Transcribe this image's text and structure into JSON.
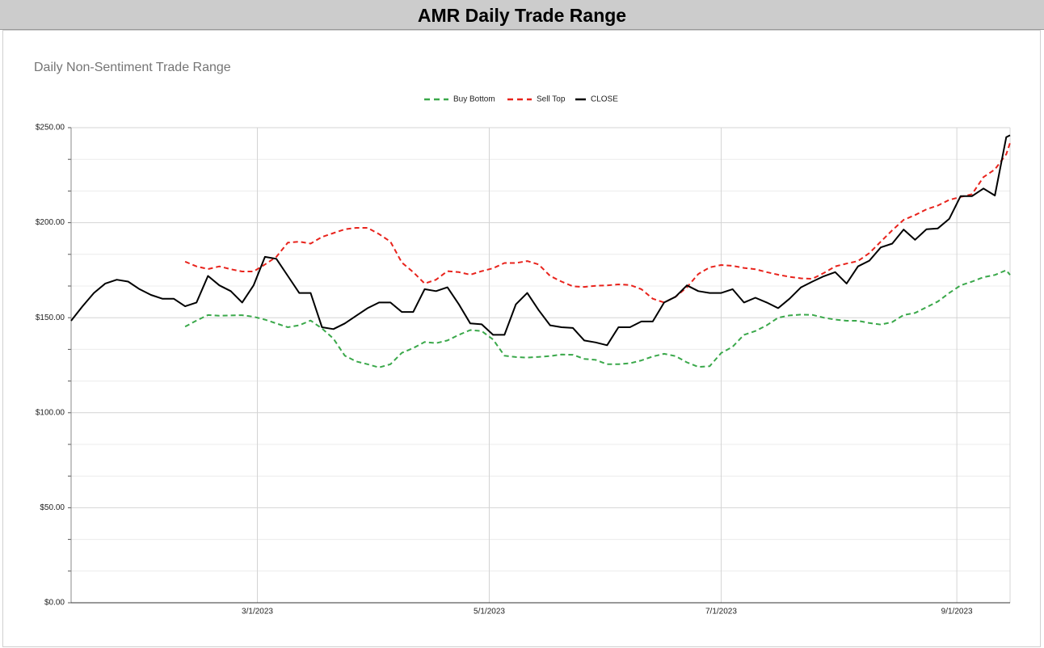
{
  "page_title": "AMR Daily Trade Range",
  "chart_data": {
    "type": "line",
    "title": "Daily Non-Sentiment Trade Range",
    "legend": "top",
    "grid": true,
    "x": [
      "2023-01-11",
      "2023-01-14",
      "2023-01-17",
      "2023-01-20",
      "2023-01-23",
      "2023-01-26",
      "2023-01-29",
      "2023-02-01",
      "2023-02-04",
      "2023-02-07",
      "2023-02-10",
      "2023-02-13",
      "2023-02-16",
      "2023-02-19",
      "2023-02-22",
      "2023-02-25",
      "2023-02-28",
      "2023-03-03",
      "2023-03-06",
      "2023-03-09",
      "2023-03-12",
      "2023-03-15",
      "2023-03-18",
      "2023-03-21",
      "2023-03-24",
      "2023-03-27",
      "2023-03-30",
      "2023-04-02",
      "2023-04-05",
      "2023-04-08",
      "2023-04-11",
      "2023-04-14",
      "2023-04-17",
      "2023-04-20",
      "2023-04-23",
      "2023-04-26",
      "2023-04-29",
      "2023-05-02",
      "2023-05-05",
      "2023-05-08",
      "2023-05-11",
      "2023-05-14",
      "2023-05-17",
      "2023-05-20",
      "2023-05-23",
      "2023-05-26",
      "2023-05-29",
      "2023-06-01",
      "2023-06-04",
      "2023-06-07",
      "2023-06-10",
      "2023-06-13",
      "2023-06-16",
      "2023-06-19",
      "2023-06-22",
      "2023-06-25",
      "2023-06-28",
      "2023-07-01",
      "2023-07-04",
      "2023-07-07",
      "2023-07-10",
      "2023-07-13",
      "2023-07-16",
      "2023-07-19",
      "2023-07-22",
      "2023-07-25",
      "2023-07-28",
      "2023-07-31",
      "2023-08-03",
      "2023-08-06",
      "2023-08-09",
      "2023-08-12",
      "2023-08-15",
      "2023-08-18",
      "2023-08-21",
      "2023-08-24",
      "2023-08-27",
      "2023-08-30",
      "2023-09-02",
      "2023-09-05",
      "2023-09-08",
      "2023-09-11",
      "2023-09-14",
      "2023-09-15"
    ],
    "xlim": [
      "2023-01-11",
      "2023-09-15"
    ],
    "xticks": [
      {
        "value": "2023-03-01",
        "label": "3/1/2023"
      },
      {
        "value": "2023-05-01",
        "label": "5/1/2023"
      },
      {
        "value": "2023-07-01",
        "label": "7/1/2023"
      },
      {
        "value": "2023-09-01",
        "label": "9/1/2023"
      }
    ],
    "ylim": [
      0,
      250
    ],
    "yticks": [
      {
        "value": 0,
        "label": "$0.00"
      },
      {
        "value": 50,
        "label": "$50.00"
      },
      {
        "value": 100,
        "label": "$100.00"
      },
      {
        "value": 150,
        "label": "$150.00"
      },
      {
        "value": 200,
        "label": "$200.00"
      },
      {
        "value": 250,
        "label": "$250.00"
      }
    ],
    "series": [
      {
        "name": "Buy Bottom",
        "color": "#3aa84a",
        "line_style": "dashed",
        "values": [
          null,
          null,
          null,
          null,
          null,
          null,
          null,
          null,
          null,
          null,
          145.3,
          148.5,
          151.4,
          151,
          151.2,
          151.3,
          150.5,
          149,
          147,
          145,
          146,
          148.5,
          144.3,
          139,
          130,
          127,
          125.5,
          123.8,
          125.5,
          131.5,
          134,
          137.2,
          136.6,
          138,
          141,
          143.5,
          143,
          138.5,
          130,
          129.3,
          129,
          129.4,
          129.8,
          130.6,
          130.5,
          128.3,
          127.8,
          125.5,
          125.5,
          126,
          127.5,
          129.6,
          131,
          129.8,
          126.5,
          124.1,
          124.5,
          131.4,
          134.7,
          141,
          143,
          146,
          150,
          151.2,
          151.6,
          151.5,
          150,
          149,
          148.4,
          148.4,
          147.2,
          146.4,
          147.7,
          151.4,
          152.5,
          155.5,
          158.5,
          163,
          167,
          169,
          171.3,
          172.5,
          175,
          172.5
        ]
      },
      {
        "name": "Sell Top",
        "color": "#e8231c",
        "line_style": "dashed",
        "values": [
          null,
          null,
          null,
          null,
          null,
          null,
          null,
          null,
          null,
          null,
          179.5,
          177,
          175.6,
          177,
          175.5,
          174.3,
          174.3,
          178,
          182,
          189.5,
          190,
          189,
          192.5,
          194.5,
          196.5,
          197.3,
          197.3,
          194,
          190,
          179,
          174,
          168,
          170,
          174.5,
          174,
          172.6,
          174.5,
          176,
          178.8,
          178.8,
          179.8,
          178,
          172,
          169,
          166.5,
          166.2,
          166.8,
          167,
          167.5,
          167.2,
          165,
          160,
          158,
          161,
          166,
          173,
          176.5,
          177.7,
          177.3,
          176.2,
          175.5,
          174,
          172.6,
          171.5,
          170.7,
          170.5,
          173.5,
          177,
          178.5,
          179.8,
          184,
          190,
          196,
          201.5,
          204,
          207,
          209,
          212,
          213.5,
          215,
          224,
          228,
          236,
          242
        ]
      },
      {
        "name": "CLOSE",
        "color": "#000000",
        "line_style": "solid",
        "values": [
          148.4,
          156,
          163,
          168,
          170,
          169,
          165,
          162,
          160,
          160,
          156,
          158,
          172,
          167,
          164,
          158,
          167,
          182,
          181,
          172,
          163,
          163,
          145,
          144,
          147,
          151,
          155,
          158,
          158,
          153,
          153,
          165,
          164,
          166,
          157,
          147,
          146.5,
          141,
          141,
          157,
          163,
          154,
          146,
          145,
          144.6,
          138,
          137,
          135.5,
          145,
          145,
          148,
          148,
          158,
          161,
          167,
          164,
          163,
          163,
          165,
          158,
          160.5,
          158,
          155,
          160,
          166,
          169,
          171.8,
          174,
          168,
          177,
          180,
          187,
          189,
          196.4,
          191,
          196.5,
          197,
          202,
          214,
          214,
          218,
          214.3,
          245,
          246
        ]
      }
    ]
  }
}
